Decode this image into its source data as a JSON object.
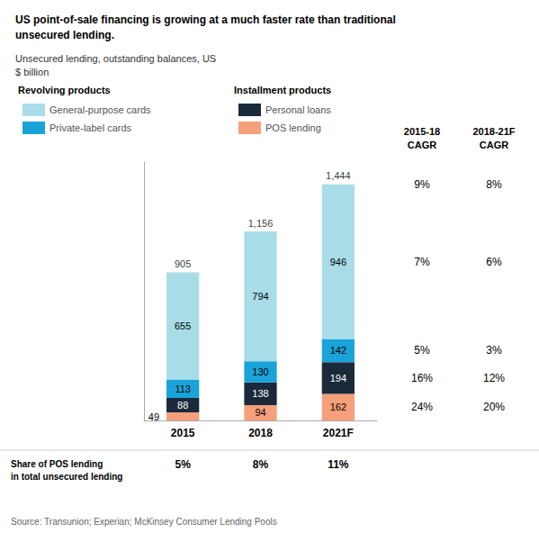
{
  "chart_data": {
    "type": "bar",
    "stacked": true,
    "title": "US point-of-sale financing is growing at a much faster rate than traditional\nunsecured lending.",
    "subtitle": "Unsecured lending, outstanding balances, US\n$ billion",
    "categories": [
      "2015",
      "2018",
      "2021F"
    ],
    "series": [
      {
        "name": "POS lending",
        "color": "#f5a07a",
        "values": [
          49,
          94,
          162
        ],
        "cagr": [
          "24%",
          "20%"
        ]
      },
      {
        "name": "Personal loans",
        "color": "#1b2a3b",
        "values": [
          88,
          138,
          194
        ],
        "cagr": [
          "16%",
          "12%"
        ]
      },
      {
        "name": "Private-label cards",
        "color": "#1aa3d9",
        "values": [
          113,
          130,
          142
        ],
        "cagr": [
          "5%",
          "3%"
        ]
      },
      {
        "name": "General-purpose cards",
        "color": "#a8dde8",
        "values": [
          655,
          794,
          946
        ],
        "cagr": [
          "7%",
          "6%"
        ]
      }
    ],
    "totals": [
      905,
      1156,
      1444
    ],
    "total_labels": [
      "905",
      "1,156",
      "1,444"
    ],
    "total_cagr": [
      "9%",
      "8%"
    ],
    "cagr_headers": [
      "2015-18\nCAGR",
      "2018-21F\nCAGR"
    ],
    "legend_groups": [
      {
        "title": "Revolving products",
        "series": [
          "General-purpose cards",
          "Private-label cards"
        ]
      },
      {
        "title": "Installment products",
        "series": [
          "Personal loans",
          "POS lending"
        ]
      }
    ],
    "share_label": "Share of POS lending\nin total unsecured lending",
    "shares": [
      "5%",
      "8%",
      "11%"
    ],
    "source": "Source: Transunion; Experian; McKinsey Consumer Lending Pools",
    "ylim": [
      0,
      1580
    ],
    "grid": false,
    "tick_labels": "x",
    "data_labels": true,
    "legend": "top"
  }
}
